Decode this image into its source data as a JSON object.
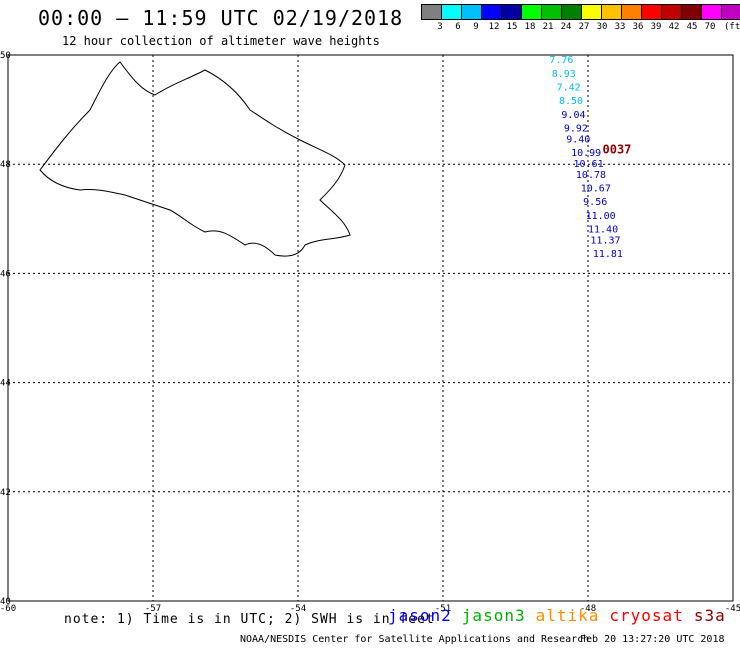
{
  "header": {
    "title": "00:00 – 11:59 UTC 02/19/2018",
    "subtitle": "12 hour collection of altimeter wave heights"
  },
  "color_scale": {
    "colors": [
      "#808080",
      "#00ffff",
      "#00bfff",
      "#0000ff",
      "#0000a0",
      "#00ff00",
      "#00c000",
      "#008000",
      "#ffff00",
      "#ffc000",
      "#ff8000",
      "#ff0000",
      "#c00000",
      "#800000",
      "#ff00ff",
      "#c000c0",
      "#000000"
    ],
    "labels": [
      "3",
      "6",
      "9",
      "12",
      "15",
      "18",
      "21",
      "24",
      "27",
      "30",
      "33",
      "36",
      "39",
      "42",
      "45",
      "70"
    ],
    "unit": "(ft)"
  },
  "axes": {
    "x_ticks": [
      "-60",
      "-57",
      "-54",
      "-51",
      "-48",
      "-45"
    ],
    "y_ticks": [
      "50",
      "48",
      "46",
      "44",
      "42",
      "40"
    ]
  },
  "chart_data": {
    "type": "scatter",
    "x_range": [
      -60,
      -45
    ],
    "y_range": [
      40,
      50
    ],
    "tracks": [
      {
        "satellite": "jason2",
        "times": [
          {
            "label": "0037",
            "lon": -47.7,
            "lat": 48.2,
            "color": "#8b0000"
          }
        ],
        "points": [
          {
            "lon": -48.8,
            "lat": 49.85,
            "value": "7.76",
            "color": "#00bfff"
          },
          {
            "lon": -48.75,
            "lat": 49.6,
            "value": "8.93",
            "color": "#00bfff"
          },
          {
            "lon": -48.65,
            "lat": 49.35,
            "value": "7.42",
            "color": "#00bfff"
          },
          {
            "lon": -48.6,
            "lat": 49.1,
            "value": "8.50",
            "color": "#00bfff"
          },
          {
            "lon": -48.55,
            "lat": 48.85,
            "value": "9.04",
            "color": "#0000cc"
          },
          {
            "lon": -48.5,
            "lat": 48.6,
            "value": "9.92",
            "color": "#0000cc"
          },
          {
            "lon": -48.45,
            "lat": 48.4,
            "value": "9.40",
            "color": "#0000cc"
          },
          {
            "lon": -48.35,
            "lat": 48.15,
            "value": "10.99",
            "color": "#0000cc"
          },
          {
            "lon": -48.3,
            "lat": 47.95,
            "value": "10.61",
            "color": "#0000cc"
          },
          {
            "lon": -48.25,
            "lat": 47.75,
            "value": "10.78",
            "color": "#0000cc"
          },
          {
            "lon": -48.15,
            "lat": 47.5,
            "value": "10.67",
            "color": "#0000cc"
          },
          {
            "lon": -48.1,
            "lat": 47.25,
            "value": "9.56",
            "color": "#0000cc"
          },
          {
            "lon": -48.05,
            "lat": 47.0,
            "value": "11.00",
            "color": "#0000cc"
          },
          {
            "lon": -48.0,
            "lat": 46.75,
            "value": "11.40",
            "color": "#0000cc"
          },
          {
            "lon": -47.95,
            "lat": 46.55,
            "value": "11.37",
            "color": "#0000cc"
          },
          {
            "lon": -47.9,
            "lat": 46.3,
            "value": "11.81",
            "color": "#0000cc"
          }
        ]
      }
    ]
  },
  "footer": {
    "note": "note: 1) Time is in UTC; 2) SWH is in feet",
    "legend": [
      {
        "name": "jason2",
        "color": "#0000ff"
      },
      {
        "name": "jason3",
        "color": "#00b000"
      },
      {
        "name": "altika",
        "color": "#ff8c00"
      },
      {
        "name": "cryosat",
        "color": "#ff0000"
      },
      {
        "name": "s3a",
        "color": "#8b0000"
      }
    ],
    "credits": "NOAA/NESDIS Center for Satellite Applications and Research",
    "timestamp": "Feb 20 13:27:20 UTC 2018"
  }
}
